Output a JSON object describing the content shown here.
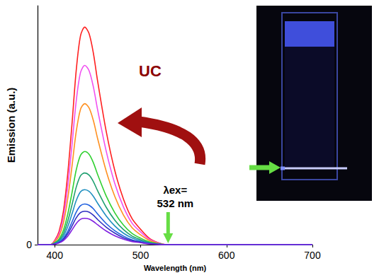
{
  "chart_data": {
    "type": "line",
    "xlabel": "Wavelength (nm)",
    "ylabel": "Emission (a.u.)",
    "xlim": [
      380,
      700
    ],
    "xticks": [
      400,
      500,
      600,
      700
    ],
    "ylim": [
      0,
      1
    ],
    "yticks": [
      0
    ],
    "grid": false,
    "x": [
      380,
      395,
      400,
      405,
      410,
      415,
      420,
      425,
      430,
      435,
      440,
      445,
      450,
      460,
      470,
      480,
      490,
      500,
      510,
      520,
      530,
      700
    ],
    "series": [
      {
        "color": "#ff2020",
        "values": [
          0,
          0,
          0.018,
          0.055,
          0.137,
          0.291,
          0.5,
          0.728,
          0.874,
          0.91,
          0.883,
          0.801,
          0.683,
          0.473,
          0.309,
          0.191,
          0.109,
          0.064,
          0.027,
          0.009,
          0,
          0
        ]
      },
      {
        "color": "#f050f0",
        "values": [
          0,
          0,
          0.015,
          0.045,
          0.113,
          0.24,
          0.413,
          0.6,
          0.72,
          0.75,
          0.728,
          0.66,
          0.563,
          0.39,
          0.255,
          0.158,
          0.09,
          0.053,
          0.023,
          0.008,
          0,
          0
        ]
      },
      {
        "color": "#ff9020",
        "values": [
          0,
          0,
          0.012,
          0.035,
          0.089,
          0.189,
          0.325,
          0.472,
          0.566,
          0.59,
          0.572,
          0.519,
          0.443,
          0.307,
          0.201,
          0.124,
          0.071,
          0.041,
          0.018,
          0.006,
          0,
          0
        ]
      },
      {
        "color": "#30d030",
        "values": [
          0,
          0,
          0.008,
          0.023,
          0.059,
          0.125,
          0.215,
          0.312,
          0.374,
          0.39,
          0.378,
          0.343,
          0.293,
          0.203,
          0.133,
          0.082,
          0.047,
          0.027,
          0.012,
          0.004,
          0,
          0
        ]
      },
      {
        "color": "#20a070",
        "values": [
          0,
          0,
          0.006,
          0.018,
          0.045,
          0.096,
          0.165,
          0.24,
          0.288,
          0.3,
          0.291,
          0.264,
          0.225,
          0.156,
          0.102,
          0.063,
          0.036,
          0.021,
          0.009,
          0.003,
          0,
          0
        ]
      },
      {
        "color": "#2090c0",
        "values": [
          0,
          0,
          0.005,
          0.014,
          0.035,
          0.074,
          0.127,
          0.184,
          0.221,
          0.23,
          0.223,
          0.202,
          0.173,
          0.12,
          0.078,
          0.048,
          0.028,
          0.016,
          0.007,
          0.002,
          0,
          0
        ]
      },
      {
        "color": "#2060e0",
        "values": [
          0,
          0,
          0.003,
          0.01,
          0.026,
          0.054,
          0.094,
          0.136,
          0.163,
          0.17,
          0.165,
          0.15,
          0.128,
          0.088,
          0.058,
          0.036,
          0.02,
          0.012,
          0.005,
          0.002,
          0,
          0
        ]
      },
      {
        "color": "#3030c0",
        "values": [
          0,
          0,
          0.003,
          0.008,
          0.021,
          0.045,
          0.077,
          0.112,
          0.134,
          0.14,
          0.136,
          0.123,
          0.105,
          0.073,
          0.048,
          0.029,
          0.017,
          0.01,
          0.004,
          0.001,
          0,
          0
        ]
      },
      {
        "color": "#8020e0",
        "values": [
          0,
          0,
          0.002,
          0.007,
          0.017,
          0.035,
          0.061,
          0.088,
          0.106,
          0.11,
          0.107,
          0.097,
          0.083,
          0.057,
          0.037,
          0.023,
          0.013,
          0.008,
          0.003,
          0.001,
          0,
          0
        ]
      }
    ],
    "annotations": [
      {
        "text": "UC"
      },
      {
        "text": "λex=",
        "x": 532
      },
      {
        "text": "532 nm",
        "x": 532
      }
    ]
  }
}
